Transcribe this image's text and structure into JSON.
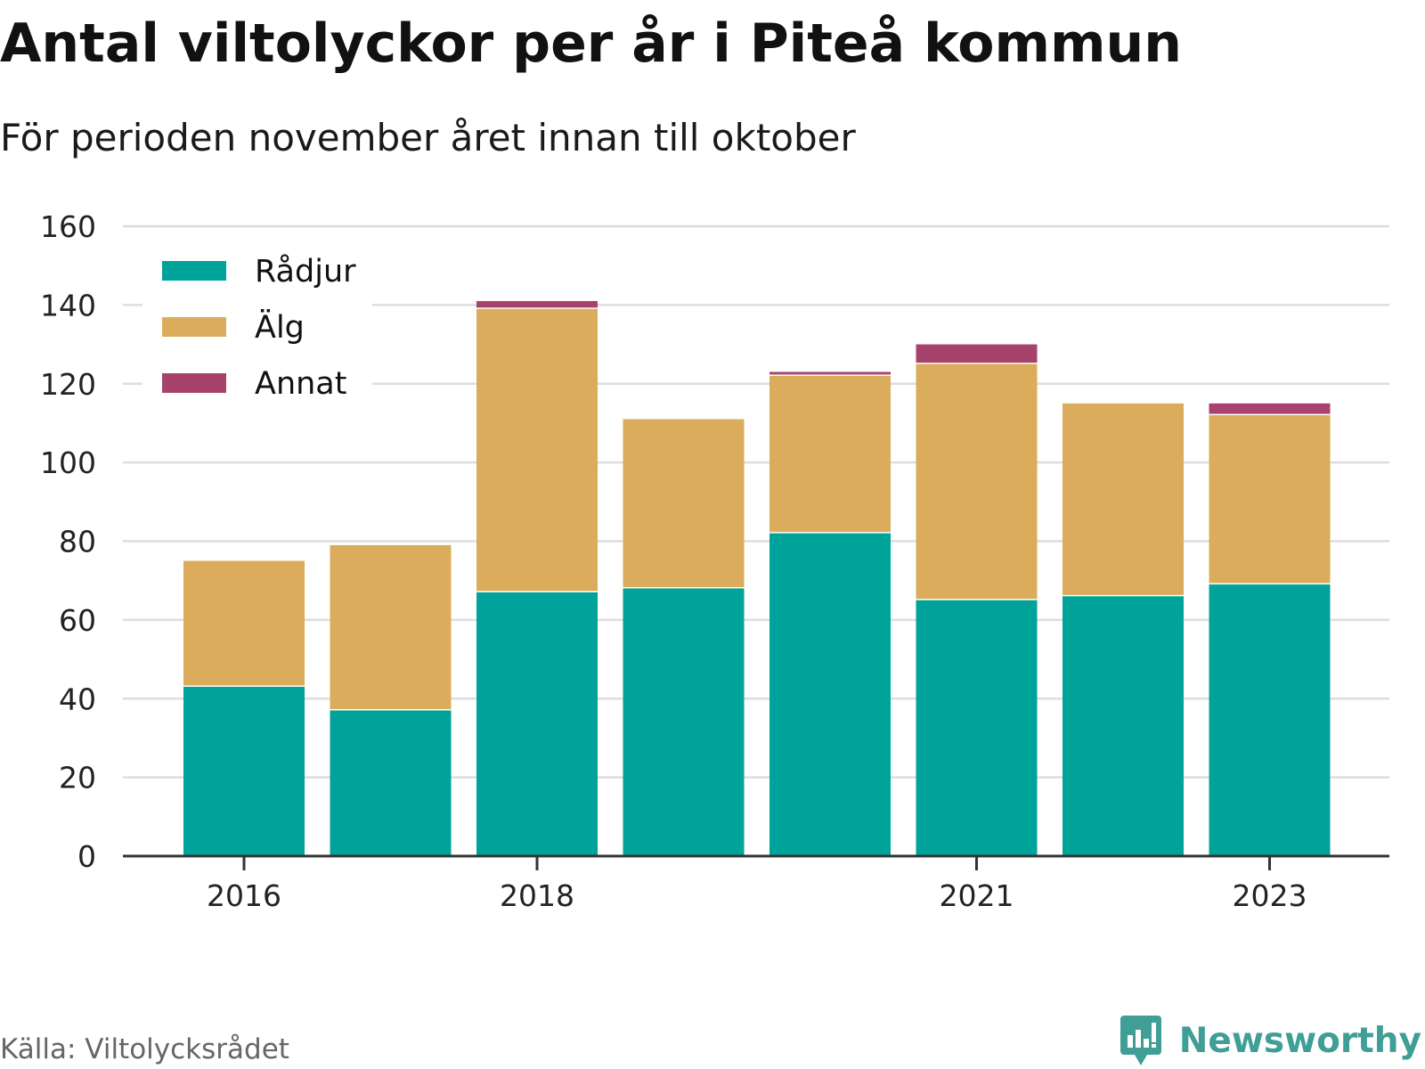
{
  "title": "Antal viltolyckor per år i Piteå kommun",
  "subtitle": "För perioden november året innan till oktober",
  "source": "Källa: Viltolycksrådet",
  "brand": "Newsworthy",
  "colors": {
    "radjur": "#00a39a",
    "alg": "#dbac5b",
    "annat": "#a6426b",
    "grid": "#dddddd",
    "axis": "#333333",
    "brand": "#3f9e96"
  },
  "chart_data": {
    "type": "bar",
    "stacked": true,
    "categories": [
      "2016",
      "2017",
      "2018",
      "2019",
      "2020",
      "2021",
      "2022",
      "2023"
    ],
    "x_tick_labels": [
      "2016",
      "",
      "2018",
      "",
      "",
      "2021",
      "",
      "2023"
    ],
    "series": [
      {
        "name": "Rådjur",
        "color": "#00a39a",
        "values": [
          43,
          37,
          67,
          68,
          82,
          65,
          66,
          69
        ]
      },
      {
        "name": "Älg",
        "color": "#dbac5b",
        "values": [
          32,
          42,
          72,
          43,
          40,
          60,
          49,
          43
        ]
      },
      {
        "name": "Annat",
        "color": "#a6426b",
        "values": [
          0,
          0,
          2,
          0,
          1,
          5,
          0,
          3
        ]
      }
    ],
    "ylim": [
      0,
      160
    ],
    "yticks": [
      0,
      20,
      40,
      60,
      80,
      100,
      120,
      140,
      160
    ],
    "grid": true,
    "legend_position": "top-left",
    "xlabel": "",
    "ylabel": ""
  }
}
